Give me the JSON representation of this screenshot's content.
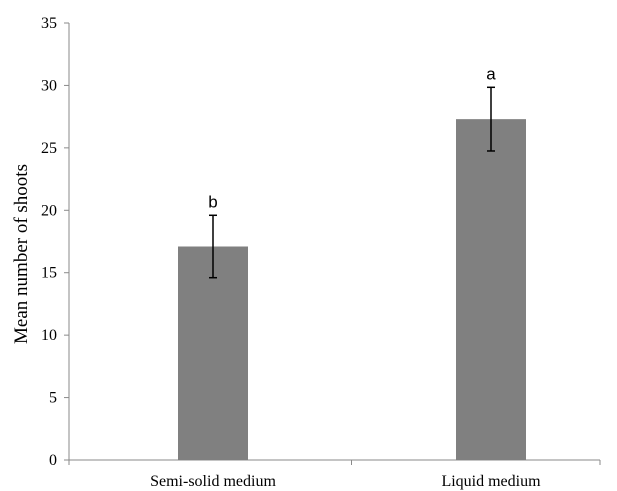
{
  "chart_data": {
    "type": "bar",
    "categories": [
      "Semi-solid medium",
      "Liquid medium"
    ],
    "values": [
      17.1,
      27.3
    ],
    "error": [
      2.5,
      2.55
    ],
    "significance_letters": [
      "b",
      "a"
    ],
    "title": "",
    "xlabel": "",
    "ylabel": "Mean number of shoots",
    "ylim": [
      0,
      35
    ],
    "yticks": [
      0,
      5,
      10,
      15,
      20,
      25,
      30,
      35
    ],
    "grid": false,
    "legend": "none",
    "bar_color": "#808080"
  }
}
